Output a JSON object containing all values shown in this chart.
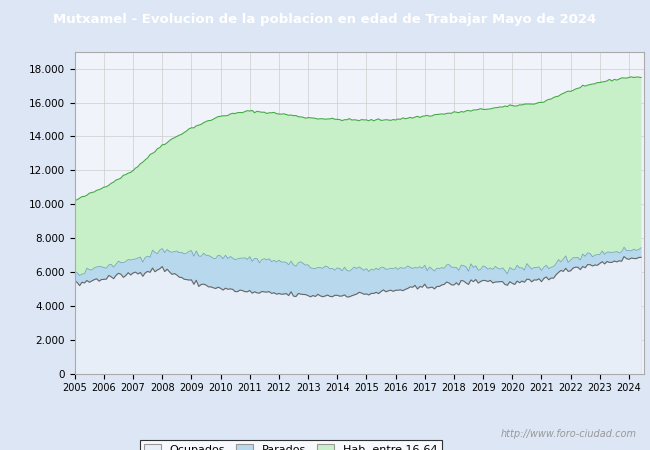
{
  "title": "Mutxamel - Evolucion de la poblacion en edad de Trabajar Mayo de 2024",
  "title_bg": "#4472c4",
  "title_color": "#ffffff",
  "xlim_start": 2005.0,
  "xlim_end": 2024.5,
  "ylim": [
    0,
    19000
  ],
  "yticks": [
    0,
    2000,
    4000,
    6000,
    8000,
    10000,
    12000,
    14000,
    16000,
    18000
  ],
  "ytick_labels": [
    "0",
    "2.000",
    "4.000",
    "6.000",
    "8.000",
    "10.000",
    "12.000",
    "14.000",
    "16.000",
    "18.000"
  ],
  "color_hab": "#c8f0c8",
  "color_hab_line": "#44aa44",
  "color_ocupados_fill": "#e8eef8",
  "color_ocupados_line": "#666666",
  "color_parados_fill": "#b8d8ee",
  "color_parados_line": "#5588bb",
  "legend_labels": [
    "Ocupados",
    "Parados",
    "Hab. entre 16-64"
  ],
  "watermark": "http://www.foro-ciudad.com",
  "fig_bg": "#dce6f4",
  "plot_bg": "#f0f4fa",
  "grid_color": "#cccccc"
}
